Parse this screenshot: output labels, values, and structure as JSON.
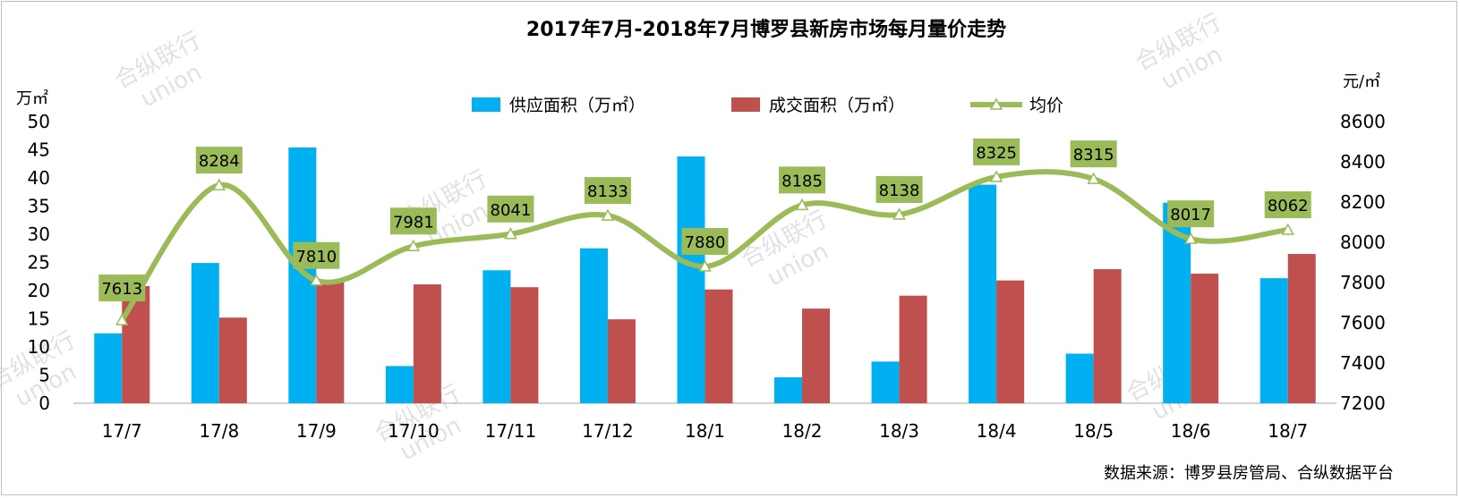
{
  "watermark": {
    "line1": "合纵联行",
    "line2": "union"
  },
  "chart_data": {
    "type": "bar",
    "title": "2017年7月-2018年7月博罗县新房市场每月量价走势",
    "source": "数据来源：博罗县房管局、合纵数据平台",
    "categories": [
      "17/7",
      "17/8",
      "17/9",
      "17/10",
      "17/11",
      "17/12",
      "18/1",
      "18/2",
      "18/3",
      "18/4",
      "18/5",
      "18/6",
      "18/7"
    ],
    "y_left": {
      "label": "万㎡",
      "min": 0,
      "max": 50,
      "ticks": [
        0,
        5,
        10,
        15,
        20,
        25,
        30,
        35,
        40,
        45,
        50
      ]
    },
    "y_right": {
      "label": "元/㎡",
      "min": 7200,
      "max": 8600,
      "ticks": [
        7200,
        7400,
        7600,
        7800,
        8000,
        8200,
        8400,
        8600
      ]
    },
    "grid": false,
    "legend_position": "top",
    "series": [
      {
        "name": "供应面积（万㎡）",
        "type": "bar",
        "axis": "left",
        "color": "#00b0f0",
        "values": [
          12.4,
          24.9,
          45.4,
          6.6,
          23.6,
          27.5,
          43.8,
          4.6,
          7.4,
          38.8,
          8.8,
          35.6,
          22.2
        ]
      },
      {
        "name": "成交面积（万㎡）",
        "type": "bar",
        "axis": "left",
        "color": "#c0504d",
        "values": [
          20.8,
          15.2,
          21.6,
          21.1,
          20.6,
          14.9,
          20.2,
          16.8,
          19.1,
          21.8,
          23.8,
          23.0,
          26.5
        ]
      },
      {
        "name": "均价",
        "type": "line",
        "axis": "right",
        "color": "#9bbb59",
        "smooth": true,
        "values": [
          7613,
          8284,
          7810,
          7981,
          8041,
          8133,
          7880,
          8185,
          8138,
          8325,
          8315,
          8017,
          8062
        ]
      }
    ]
  }
}
